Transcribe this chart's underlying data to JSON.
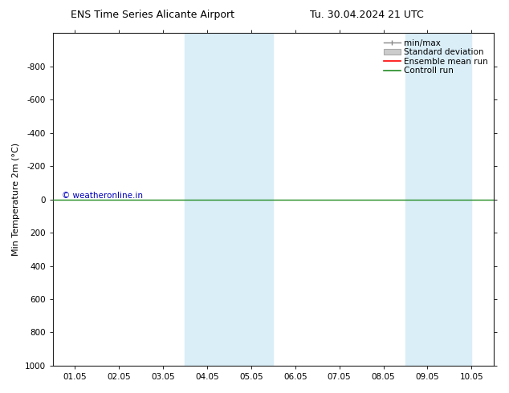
{
  "title_left": "ENS Time Series Alicante Airport",
  "title_right": "Tu. 30.04.2024 21 UTC",
  "ylabel": "Min Temperature 2m (°C)",
  "ylim_bottom": -1000,
  "ylim_top": 1000,
  "yticks": [
    -800,
    -600,
    -400,
    -200,
    0,
    200,
    400,
    600,
    800,
    1000
  ],
  "xlim_min": 0.5,
  "xlim_max": 10.5,
  "xtick_labels": [
    "01.05",
    "02.05",
    "03.05",
    "04.05",
    "05.05",
    "06.05",
    "07.05",
    "08.05",
    "09.05",
    "10.05"
  ],
  "xtick_positions": [
    1.0,
    2.0,
    3.0,
    4.0,
    5.0,
    6.0,
    7.0,
    8.0,
    9.0,
    10.0
  ],
  "shaded_bands": [
    [
      3.5,
      4.5
    ],
    [
      4.5,
      5.5
    ],
    [
      8.5,
      9.25
    ],
    [
      9.25,
      10.0
    ]
  ],
  "shaded_color": "#daeef8",
  "control_run_y": 0.0,
  "control_run_color": "#228B22",
  "ensemble_mean_color": "#ff0000",
  "minmax_color": "#888888",
  "stddev_fill_color": "#cccccc",
  "stddev_edge_color": "#aaaaaa",
  "watermark": "© weatheronline.in",
  "watermark_color": "#0000bb",
  "background_color": "#ffffff",
  "legend_labels": [
    "min/max",
    "Standard deviation",
    "Ensemble mean run",
    "Controll run"
  ],
  "legend_line_colors": [
    "#888888",
    "#cccccc",
    "#ff0000",
    "#228B22"
  ]
}
